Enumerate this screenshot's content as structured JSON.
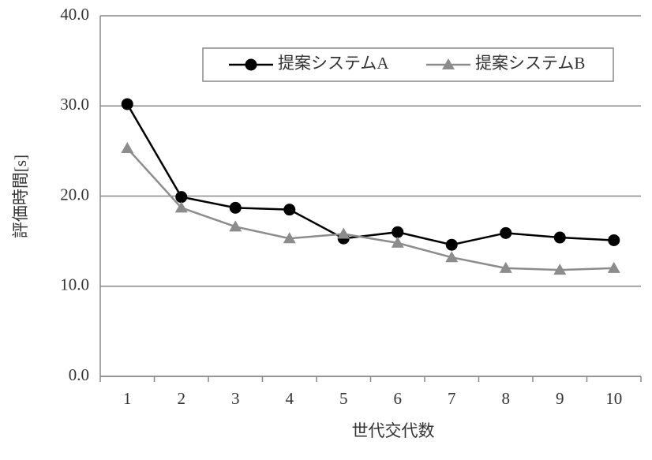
{
  "chart_data": {
    "type": "line",
    "x_label": "世代交代数",
    "y_label": "評価時間[s]",
    "categories": [
      "1",
      "2",
      "3",
      "4",
      "5",
      "6",
      "7",
      "8",
      "9",
      "10"
    ],
    "series": [
      {
        "name": "提案システムA",
        "color": "#000000",
        "marker": "circle",
        "values": [
          30.2,
          19.9,
          18.7,
          18.5,
          15.3,
          16.0,
          14.6,
          15.9,
          15.4,
          15.1
        ]
      },
      {
        "name": "提案システムB",
        "color": "#8c8c8c",
        "marker": "triangle",
        "values": [
          25.3,
          18.7,
          16.6,
          15.3,
          15.8,
          14.8,
          13.2,
          12.0,
          11.8,
          12.0
        ]
      }
    ],
    "ylim": [
      0,
      40
    ],
    "yticks": [
      {
        "value": 0,
        "label": "0.0"
      },
      {
        "value": 10,
        "label": "10.0"
      },
      {
        "value": 20,
        "label": "20.0"
      },
      {
        "value": 30,
        "label": "30.0"
      },
      {
        "value": 40,
        "label": "40.0"
      }
    ],
    "grid": true,
    "legend": "top-right"
  }
}
